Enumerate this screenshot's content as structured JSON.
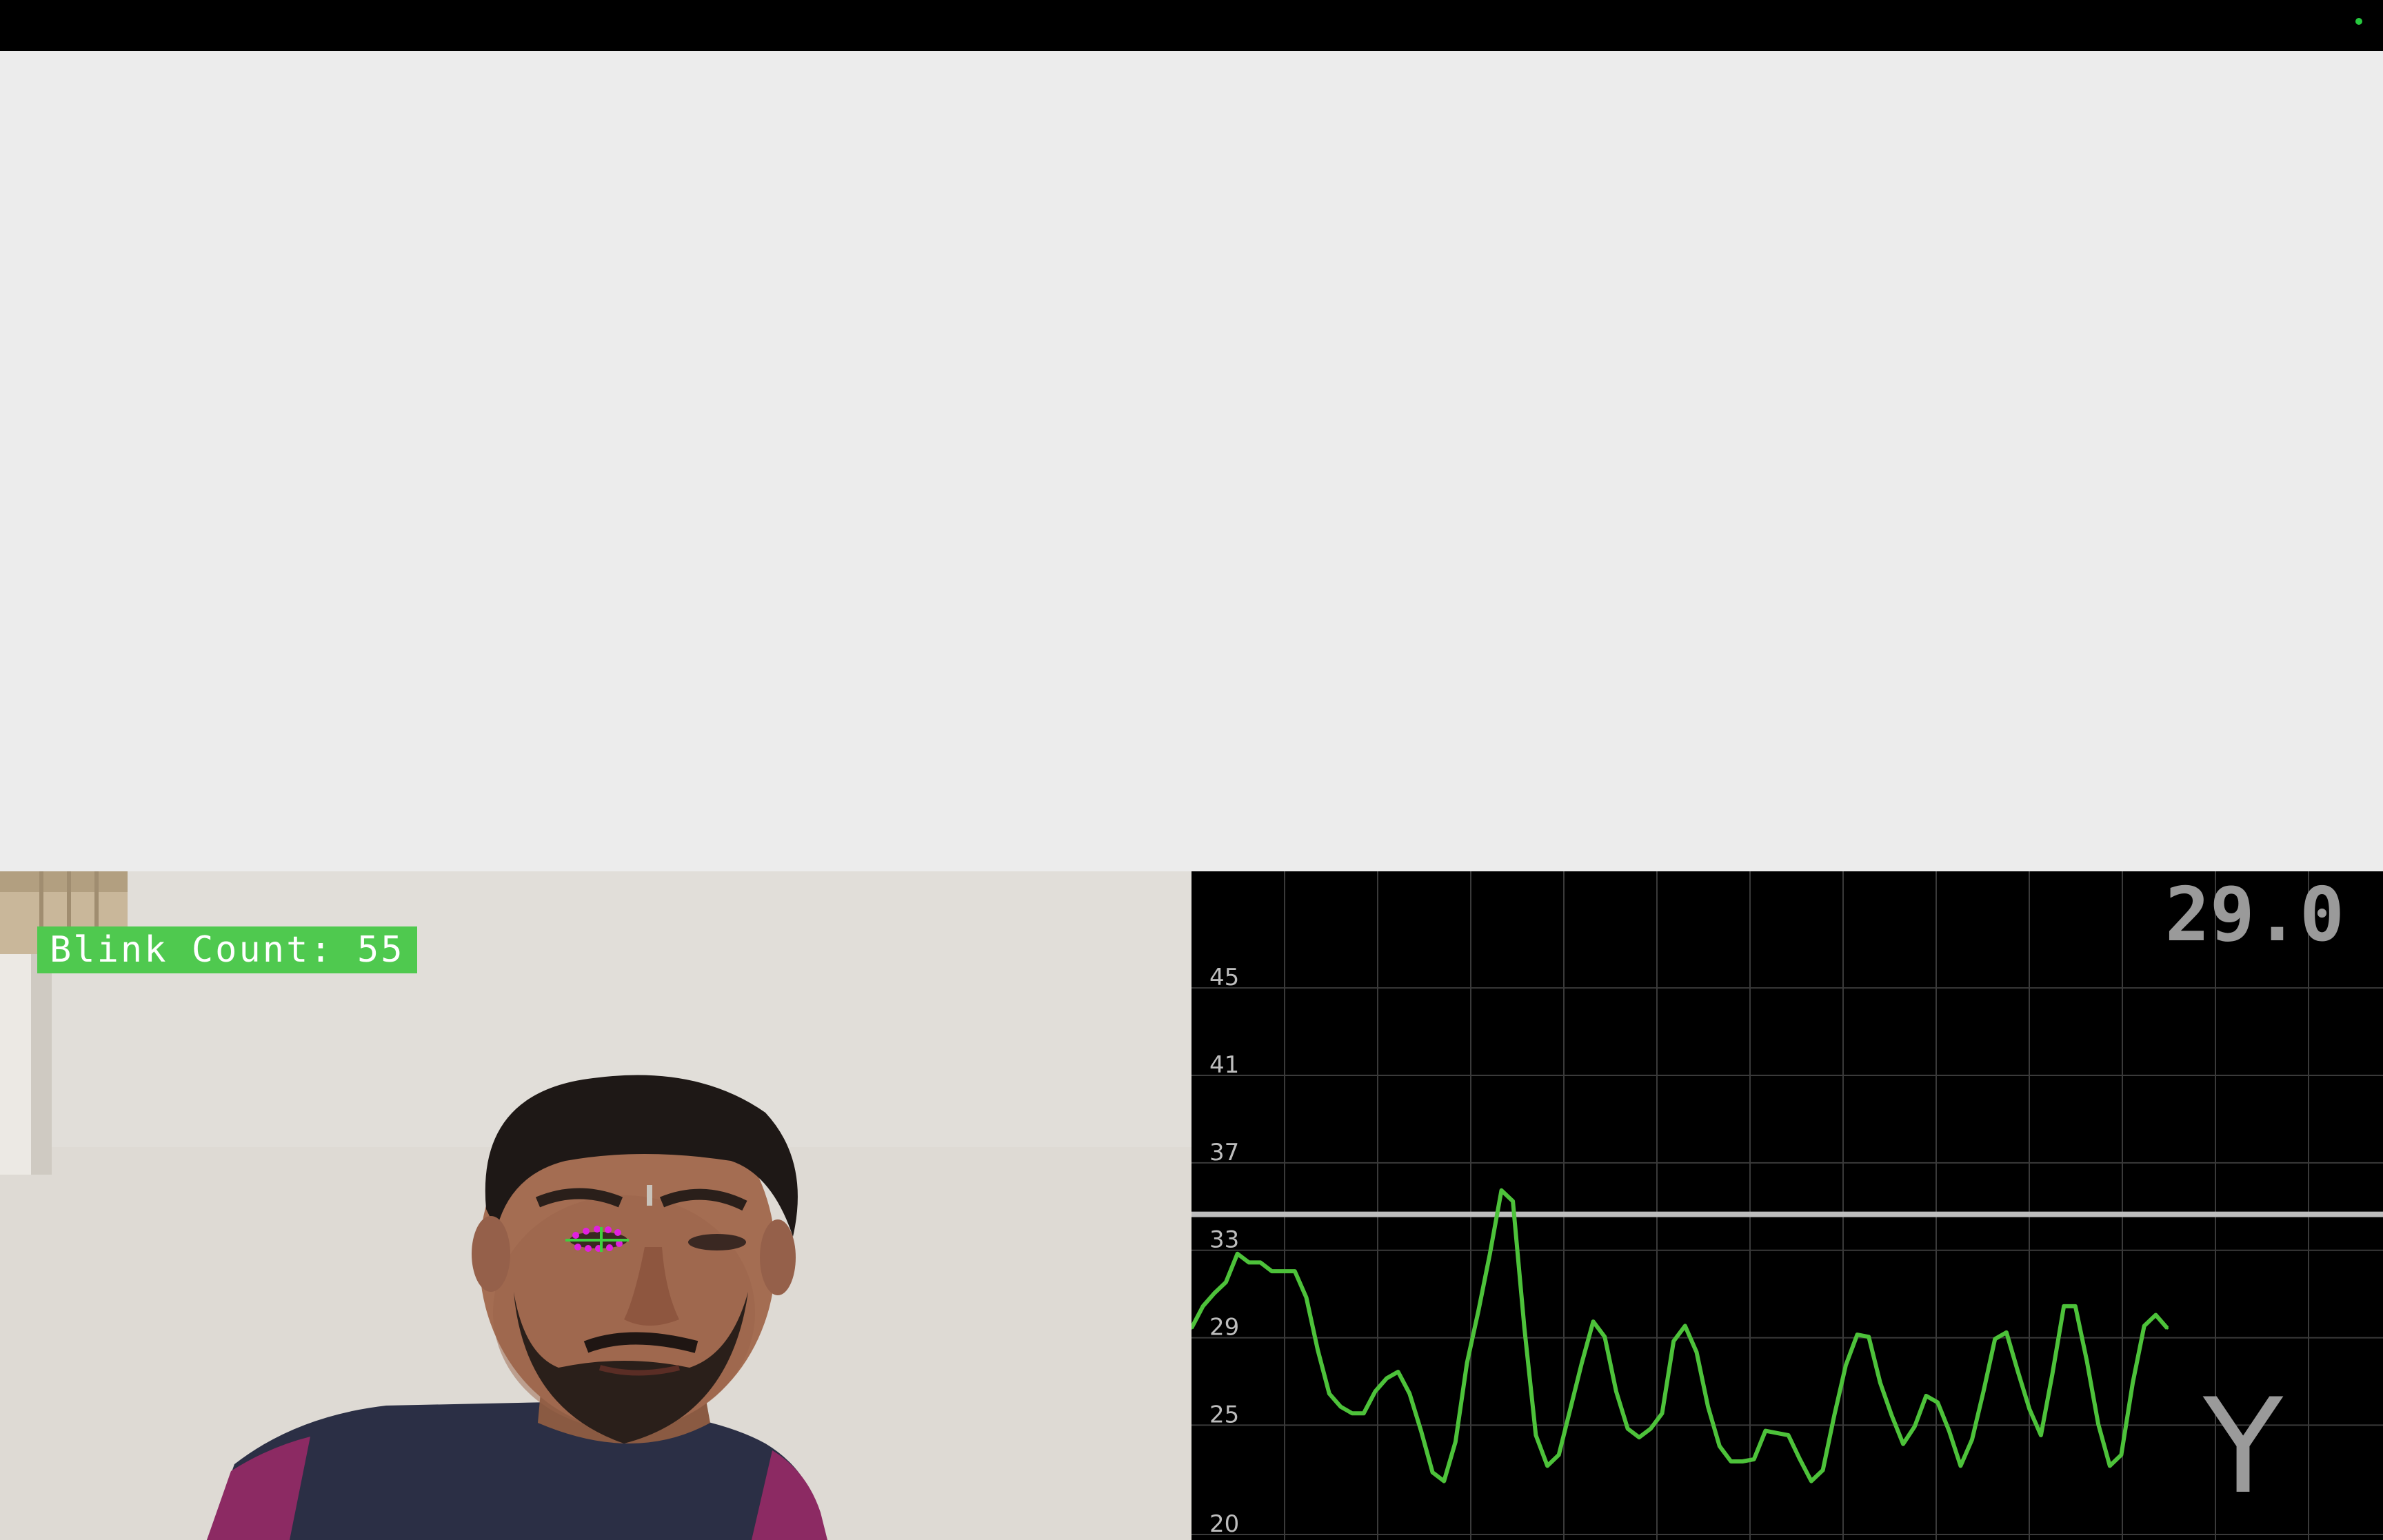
{
  "overlay": {
    "blink_label": "Blink Count: 55"
  },
  "colors": {
    "top_bar": "#000000",
    "page_background": "#ececec",
    "blink_badge": "#4fc94f",
    "graph_line": "#4dc23a",
    "graph_grid": "#3a3a3a",
    "threshold_line": "#bdbdbd",
    "eye_landmarks": "#e020e0"
  },
  "graph": {
    "current_value": "29.0",
    "axis_letter": "Y",
    "y_ticks": [
      "45",
      "41",
      "37",
      "33",
      "29",
      "25",
      "20"
    ]
  },
  "chart_data": {
    "type": "line",
    "ylim": [
      20,
      48
    ],
    "y_ticks": [
      45,
      41,
      37,
      33,
      29,
      25,
      20
    ],
    "threshold": 34.2,
    "grid": true,
    "series": [
      {
        "values": [
          29.0,
          30.0,
          30.6,
          31.1,
          32.4,
          32.0,
          32.0,
          31.6,
          31.6,
          31.6,
          30.4,
          28.0,
          26.0,
          25.4,
          25.1,
          25.1,
          26.1,
          26.7,
          27.0,
          26.0,
          24.3,
          22.4,
          22.0,
          23.8,
          27.4,
          29.8,
          32.4,
          35.3,
          34.8,
          29.0,
          24.1,
          22.7,
          23.2,
          25.3,
          27.4,
          29.3,
          28.6,
          26.1,
          24.4,
          24.0,
          24.4,
          25.1,
          28.4,
          29.1,
          27.9,
          25.4,
          23.6,
          22.9,
          22.9,
          23.0,
          24.3,
          24.2,
          24.1,
          23.0,
          22.0,
          22.5,
          25.0,
          27.3,
          28.7,
          28.6,
          26.5,
          25.0,
          23.7,
          24.5,
          25.9,
          25.6,
          24.3,
          22.7,
          23.9,
          26.1,
          28.5,
          28.8,
          27.0,
          25.3,
          24.1,
          26.9,
          30.0,
          30.0,
          27.5,
          24.6,
          22.7,
          23.2,
          26.5,
          29.1,
          29.6,
          29.0
        ]
      }
    ]
  }
}
